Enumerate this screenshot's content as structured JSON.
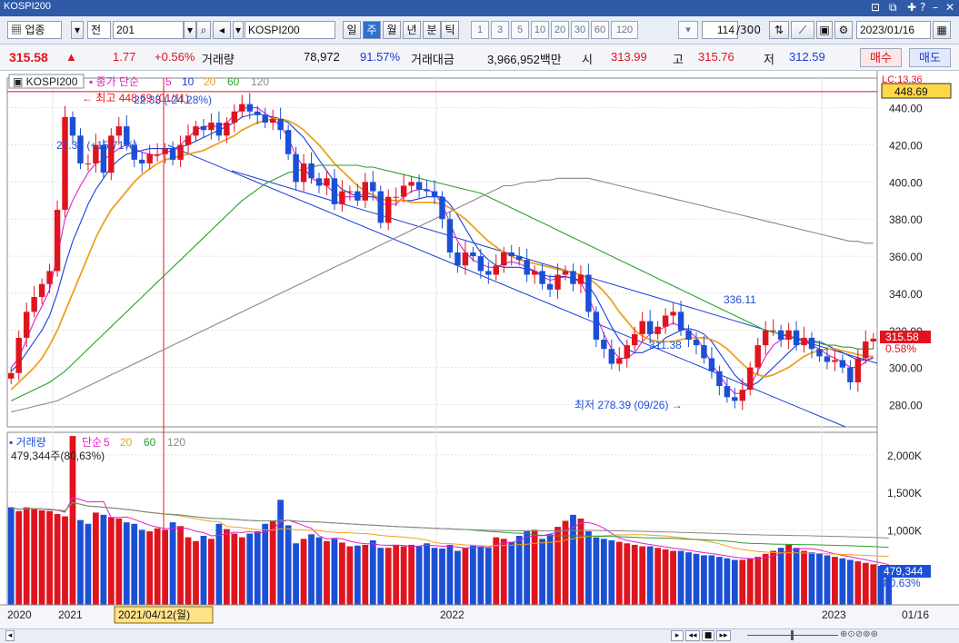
{
  "window": {
    "title": "KOSPI200"
  },
  "toolbar": {
    "category": "업종",
    "prefix": "전",
    "code": "201",
    "name": "KOSPI200",
    "periods": [
      "일",
      "주",
      "월",
      "년",
      "분",
      "틱"
    ],
    "selected_period": "주",
    "intervals": [
      "1",
      "3",
      "5",
      "10",
      "20",
      "30",
      "60",
      "120"
    ],
    "count": "114",
    "count_total": "/300",
    "date": "2023/01/16"
  },
  "quote": {
    "price": "315.58",
    "arrow": "▲",
    "change": "1.77",
    "change_pct": "+0.56%",
    "volume_label": "거래량",
    "volume": "78,972",
    "volume_pct": "91.57%",
    "amount_label": "거래대금",
    "amount": "3,966,952백만",
    "open_label": "시",
    "open": "313.99",
    "high_label": "고",
    "high": "315.76",
    "low_label": "저",
    "low": "312.59",
    "buy": "매수",
    "sell": "매도"
  },
  "chart_data": {
    "type": "candlestick",
    "price_panel": {
      "title": "KOSPI200",
      "ma_label": "종가 단순",
      "ma_periods": [
        "5",
        "10",
        "20",
        "60",
        "120"
      ],
      "ma_colors": [
        "#e020c8",
        "#1a3fd8",
        "#f0a020",
        "#2aa02a",
        "#888888"
      ],
      "yticks": [
        "440.00",
        "420.00",
        "400.00",
        "380.00",
        "360.00",
        "340.00",
        "320.00",
        "300.00",
        "280.00"
      ],
      "ylim": [
        268,
        456
      ],
      "high_mark": {
        "label": "최고 448.69 (01/11)",
        "value": 448.69
      },
      "high_price_tag": "448.69",
      "lc_label": "LC:13.36",
      "low_mark": {
        "label": "최저 278.39 (09/26)",
        "value": 278.39
      },
      "annotations": [
        "22.33 (-24.28%)",
        "27.31 (+15.71%)",
        "336.11",
        "311.38"
      ],
      "current_tag": "315.58",
      "current_pct": "0.58%",
      "closes": [
        297,
        316,
        330,
        338,
        345,
        352,
        385,
        435,
        425,
        410,
        410,
        420,
        405,
        425,
        430,
        420,
        412,
        410,
        415,
        415,
        418,
        412,
        420,
        425,
        430,
        428,
        432,
        425,
        432,
        438,
        442,
        438,
        436,
        432,
        434,
        428,
        415,
        400,
        410,
        402,
        398,
        402,
        388,
        395,
        395,
        390,
        400,
        395,
        378,
        392,
        392,
        398,
        400,
        396,
        395,
        392,
        380,
        362,
        355,
        362,
        360,
        352,
        350,
        355,
        362,
        360,
        358,
        350,
        352,
        345,
        342,
        350,
        352,
        345,
        350,
        330,
        315,
        310,
        302,
        305,
        312,
        318,
        325,
        318,
        322,
        328,
        330,
        320,
        315,
        312,
        305,
        298,
        290,
        284,
        282,
        288,
        300,
        312,
        320,
        320,
        315,
        320,
        312,
        316,
        310,
        306,
        303,
        304,
        300,
        292,
        305,
        314,
        315.58
      ],
      "ma5": [
        300,
        305,
        315,
        325,
        333,
        342,
        360,
        380,
        390,
        398,
        405,
        410,
        412,
        415,
        418,
        420,
        418,
        416,
        415,
        414,
        416,
        417,
        420,
        424,
        428,
        430,
        430,
        430,
        432,
        436,
        440,
        440,
        440,
        437,
        434,
        430,
        424,
        414,
        408,
        402,
        400,
        398,
        394,
        392,
        392,
        392,
        394,
        393,
        388,
        388,
        388,
        392,
        395,
        396,
        396,
        394,
        388,
        378,
        368,
        362,
        358,
        356,
        354,
        354,
        356,
        357,
        356,
        354,
        352,
        349,
        347,
        348,
        349,
        348,
        346,
        338,
        328,
        318,
        310,
        305,
        305,
        308,
        314,
        318,
        320,
        322,
        324,
        322,
        320,
        316,
        310,
        302,
        296,
        290,
        286,
        286,
        290,
        298,
        306,
        312,
        315,
        316,
        316,
        314,
        312,
        310,
        307,
        305,
        303,
        300,
        300,
        303,
        306
      ],
      "ma10": [
        298,
        302,
        308,
        314,
        320,
        328,
        340,
        355,
        368,
        378,
        388,
        396,
        402,
        408,
        412,
        415,
        416,
        417,
        418,
        418,
        418,
        418,
        419,
        420,
        422,
        424,
        426,
        428,
        430,
        432,
        435,
        436,
        437,
        436,
        435,
        434,
        432,
        428,
        424,
        418,
        412,
        406,
        400,
        396,
        394,
        392,
        392,
        392,
        391,
        390,
        390,
        390,
        390,
        391,
        392,
        392,
        392,
        388,
        382,
        375,
        368,
        362,
        358,
        355,
        354,
        354,
        354,
        353,
        352,
        350,
        349,
        349,
        349,
        348,
        347,
        344,
        338,
        330,
        322,
        315,
        310,
        308,
        308,
        310,
        312,
        316,
        318,
        320,
        321,
        320,
        318,
        314,
        308,
        302,
        296,
        292,
        290,
        292,
        296,
        300,
        304,
        308,
        312,
        314,
        314,
        314,
        312,
        310,
        308,
        306,
        304,
        304,
        305
      ],
      "ma20": [
        288,
        292,
        296,
        300,
        305,
        312,
        320,
        330,
        340,
        350,
        360,
        370,
        378,
        385,
        390,
        395,
        400,
        404,
        407,
        410,
        412,
        413,
        414,
        415,
        416,
        417,
        419,
        421,
        423,
        425,
        428,
        430,
        432,
        433,
        434,
        434,
        433,
        431,
        428,
        424,
        420,
        415,
        410,
        406,
        402,
        398,
        395,
        393,
        391,
        390,
        390,
        390,
        389,
        389,
        389,
        389,
        388,
        386,
        383,
        380,
        376,
        372,
        368,
        365,
        362,
        360,
        358,
        357,
        356,
        355,
        354,
        353,
        352,
        351,
        350,
        348,
        345,
        341,
        336,
        330,
        325,
        320,
        317,
        315,
        314,
        314,
        314,
        315,
        316,
        316,
        316,
        315,
        313,
        310,
        306,
        302,
        298,
        296,
        295,
        296,
        298,
        300,
        303,
        306,
        308,
        309,
        310,
        310,
        309,
        308,
        307,
        306,
        306
      ],
      "ma60": [
        282,
        284,
        286,
        288,
        290,
        292,
        295,
        298,
        302,
        306,
        310,
        314,
        318,
        322,
        326,
        330,
        334,
        338,
        342,
        346,
        350,
        354,
        358,
        362,
        366,
        370,
        374,
        378,
        382,
        386,
        390,
        393,
        396,
        399,
        401,
        403,
        405,
        406,
        407,
        408,
        409,
        409,
        409,
        409,
        409,
        409,
        408,
        408,
        407,
        406,
        405,
        404,
        403,
        402,
        401,
        400,
        399,
        398,
        397,
        396,
        395,
        394,
        392,
        390,
        388,
        386,
        384,
        382,
        380,
        378,
        376,
        374,
        372,
        370,
        368,
        366,
        364,
        362,
        360,
        358,
        356,
        354,
        352,
        350,
        348,
        346,
        344,
        342,
        340,
        338,
        336,
        334,
        332,
        330,
        328,
        326,
        324,
        322,
        320,
        319,
        318,
        317,
        316,
        315,
        314,
        313,
        312,
        312,
        311,
        311,
        310,
        310,
        310
      ],
      "ma120": [
        276,
        277,
        278,
        279,
        280,
        281,
        282,
        284,
        286,
        288,
        290,
        292,
        294,
        296,
        298,
        300,
        302,
        304,
        306,
        308,
        310,
        312,
        314,
        316,
        318,
        320,
        322,
        324,
        326,
        328,
        330,
        332,
        334,
        336,
        338,
        340,
        342,
        344,
        346,
        348,
        350,
        352,
        354,
        356,
        358,
        360,
        362,
        364,
        366,
        368,
        370,
        372,
        374,
        376,
        378,
        380,
        382,
        384,
        386,
        388,
        390,
        392,
        394,
        396,
        398,
        398,
        399,
        400,
        400,
        401,
        401,
        402,
        402,
        402,
        402,
        402,
        401,
        400,
        399,
        398,
        397,
        396,
        395,
        394,
        393,
        392,
        391,
        390,
        389,
        388,
        387,
        386,
        385,
        384,
        383,
        382,
        381,
        380,
        379,
        378,
        377,
        376,
        375,
        374,
        373,
        372,
        371,
        370,
        369,
        368,
        368,
        367,
        367
      ]
    },
    "volume_panel": {
      "title": "거래량",
      "ma_label": "단순",
      "ma_periods": [
        "5",
        "20",
        "60",
        "120"
      ],
      "yticks": [
        "2,000K",
        "1,500K",
        "1,000K"
      ],
      "ylim": [
        0,
        2300
      ],
      "header_value": "479,344주(80,63%)",
      "current_tag": "479,344",
      "current_pct": "80.63%",
      "values": [
        1300,
        1250,
        1300,
        1280,
        1260,
        1250,
        1210,
        1180,
        2250,
        1130,
        1080,
        1230,
        1200,
        1170,
        1150,
        1100,
        1080,
        1000,
        980,
        1020,
        1000,
        1100,
        1050,
        900,
        850,
        920,
        880,
        1080,
        1010,
        950,
        900,
        950,
        980,
        1080,
        1120,
        1400,
        1060,
        820,
        880,
        940,
        900,
        850,
        880,
        830,
        780,
        790,
        800,
        860,
        760,
        760,
        800,
        780,
        800,
        780,
        820,
        760,
        750,
        800,
        720,
        760,
        800,
        780,
        760,
        900,
        880,
        840,
        920,
        980,
        1000,
        880,
        940,
        1040,
        1120,
        1200,
        1150,
        980,
        900,
        880,
        860,
        840,
        820,
        800,
        780,
        780,
        760,
        740,
        720,
        720,
        700,
        680,
        660,
        660,
        640,
        620,
        600,
        600,
        620,
        640,
        680,
        720,
        760,
        800,
        760,
        720,
        700,
        680,
        660,
        640,
        620,
        600,
        580,
        560,
        540,
        520,
        479
      ],
      "up": [
        0,
        1,
        1,
        1,
        1,
        1,
        1,
        1,
        1,
        0,
        0,
        1,
        0,
        1,
        1,
        0,
        0,
        0,
        1,
        1,
        1,
        0,
        1,
        1,
        1,
        0,
        1,
        0,
        1,
        1,
        1,
        0,
        0,
        0,
        1,
        0,
        0,
        0,
        1,
        0,
        0,
        1,
        0,
        1,
        1,
        0,
        1,
        0,
        0,
        1,
        1,
        1,
        1,
        0,
        0,
        0,
        0,
        0,
        0,
        1,
        0,
        0,
        0,
        1,
        1,
        0,
        0,
        0,
        1,
        0,
        0,
        1,
        1,
        0,
        1,
        0,
        0,
        0,
        0,
        1,
        1,
        1,
        1,
        0,
        1,
        1,
        1,
        0,
        0,
        0,
        0,
        0,
        0,
        0,
        0,
        1,
        1,
        1,
        1,
        1,
        0,
        1,
        0,
        1,
        0,
        0,
        0,
        1,
        0,
        0,
        1,
        1,
        1
      ]
    },
    "x_axis": {
      "labels": [
        "2020",
        "2021",
        "2022",
        "2023"
      ],
      "cursor_date": "2021/04/12(월)",
      "right_label": "01/16"
    }
  }
}
